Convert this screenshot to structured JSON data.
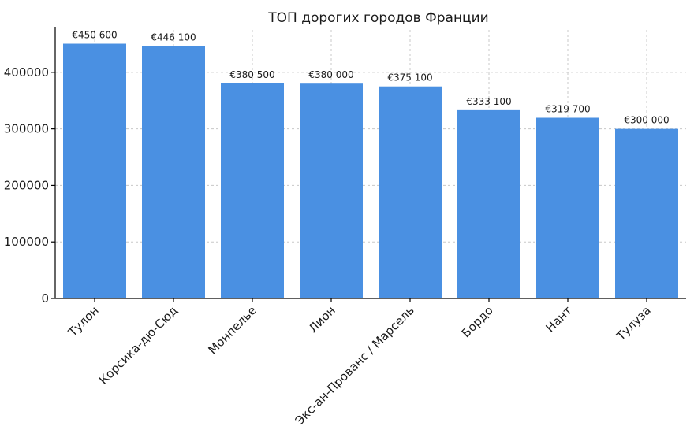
{
  "chart_data": {
    "type": "bar",
    "title": "ТОП дорогих городов Франции",
    "xlabel": "",
    "ylabel": "",
    "categories": [
      "Тулон",
      "Корсика-дю-Сюд",
      "Монпелье",
      "Лион",
      "Экс-ан-Прованс / Марсель",
      "Бордо",
      "Нант",
      "Тулуза"
    ],
    "values": [
      450600,
      446100,
      380500,
      380000,
      375100,
      333100,
      319700,
      300000
    ],
    "data_labels": [
      "€450 600",
      "€446 100",
      "€380 500",
      "€380 000",
      "€375 100",
      "€333 100",
      "€319 700",
      "€300 000"
    ],
    "yticks": [
      0,
      100000,
      200000,
      300000,
      400000
    ],
    "ytick_labels": [
      "0",
      "100000",
      "200000",
      "300000",
      "400000"
    ],
    "ylim": [
      0,
      475000
    ],
    "grid": true,
    "bar_color": "#4a90e2"
  }
}
